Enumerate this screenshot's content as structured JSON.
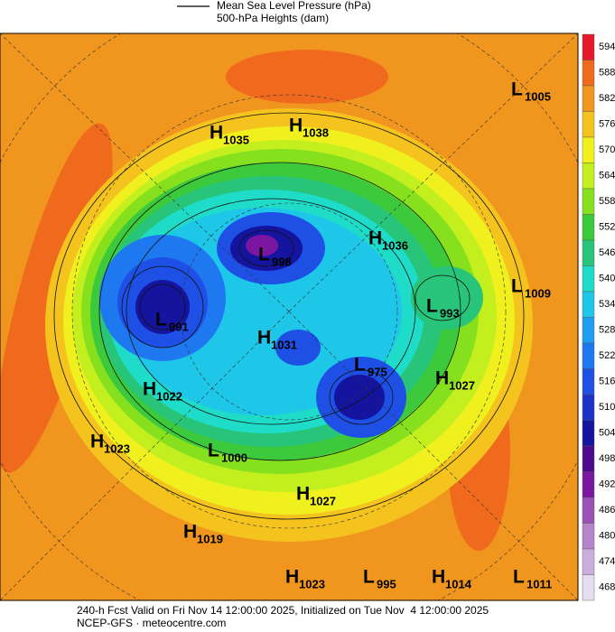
{
  "legend": {
    "contour_label": "Mean Sea Level Pressure (hPa)",
    "shading_label": "500-hPa Heights (dam)"
  },
  "colorbar": {
    "levels": [
      594,
      588,
      582,
      576,
      570,
      564,
      558,
      552,
      546,
      540,
      534,
      528,
      522,
      516,
      510,
      504,
      498,
      492,
      486,
      480,
      474,
      468
    ],
    "colors": [
      "#e8182c",
      "#f06a1e",
      "#f0961e",
      "#f5c31e",
      "#f0f01e",
      "#c3ef1e",
      "#86e01e",
      "#3cca3c",
      "#28c47a",
      "#1edcc8",
      "#1ec6e8",
      "#1e9ef0",
      "#1e78f0",
      "#1e50e6",
      "#1e32c8",
      "#14149e",
      "#4c0a8c",
      "#7a16a0",
      "#9a52b6",
      "#b684ca",
      "#ccaede",
      "#e6dcf0"
    ]
  },
  "centers": [
    {
      "type": "H",
      "value": "1035"
    },
    {
      "type": "H",
      "value": "1038"
    },
    {
      "type": "L",
      "value": "1005"
    },
    {
      "type": "H",
      "value": "1036"
    },
    {
      "type": "L",
      "value": "998"
    },
    {
      "type": "L",
      "value": "1009"
    },
    {
      "type": "L",
      "value": "993"
    },
    {
      "type": "L",
      "value": "991"
    },
    {
      "type": "H",
      "value": "1031"
    },
    {
      "type": "L",
      "value": "975"
    },
    {
      "type": "H",
      "value": "1027"
    },
    {
      "type": "H",
      "value": "1022"
    },
    {
      "type": "H",
      "value": "1023"
    },
    {
      "type": "L",
      "value": "1000"
    },
    {
      "type": "H",
      "value": "1027"
    },
    {
      "type": "H",
      "value": "1019"
    },
    {
      "type": "H",
      "value": "1023"
    },
    {
      "type": "L",
      "value": "995"
    },
    {
      "type": "H",
      "value": "1014"
    },
    {
      "type": "L",
      "value": "1011"
    }
  ],
  "footer": {
    "line1": "240-h Fcst Valid on Fri Nov 14 12:00:00 2025, Initialized on Tue Nov  4 12:00:00 2025",
    "line2": "NCEP-GFS · meteocentre.com"
  }
}
